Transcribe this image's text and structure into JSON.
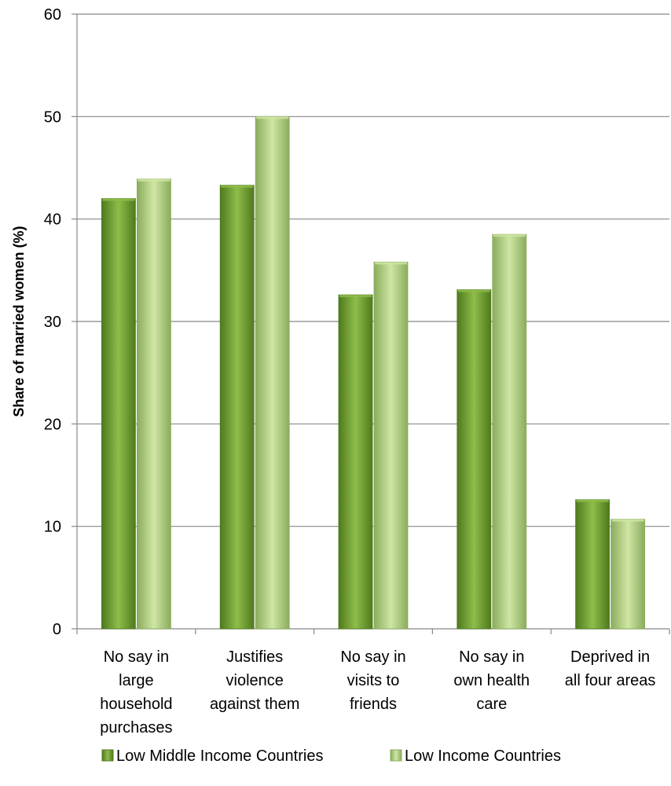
{
  "chart_data": {
    "type": "bar",
    "categories": [
      [
        "No say in",
        "large",
        "household",
        "purchases"
      ],
      [
        "Justifies",
        "violence",
        "against them"
      ],
      [
        "No say in",
        "visits to",
        "friends"
      ],
      [
        "No say in",
        "own health",
        "care"
      ],
      [
        "Deprived in",
        "all four areas"
      ]
    ],
    "series": [
      {
        "name": "Low Middle Income Countries",
        "values": [
          42.0,
          43.3,
          32.6,
          33.1,
          12.6
        ],
        "color_dark": "#4e7a1c",
        "color_light": "#8fbd4a"
      },
      {
        "name": "Low Income Countries",
        "values": [
          43.9,
          50.0,
          35.8,
          38.5,
          10.7
        ],
        "color_dark": "#8aac5c",
        "color_light": "#cfe6a4"
      }
    ],
    "ylabel": "Share of married women (%)",
    "ylim": [
      0,
      60
    ],
    "yticks": [
      0,
      10,
      20,
      30,
      40,
      50,
      60
    ],
    "grid": true,
    "legend_position": "bottom"
  }
}
